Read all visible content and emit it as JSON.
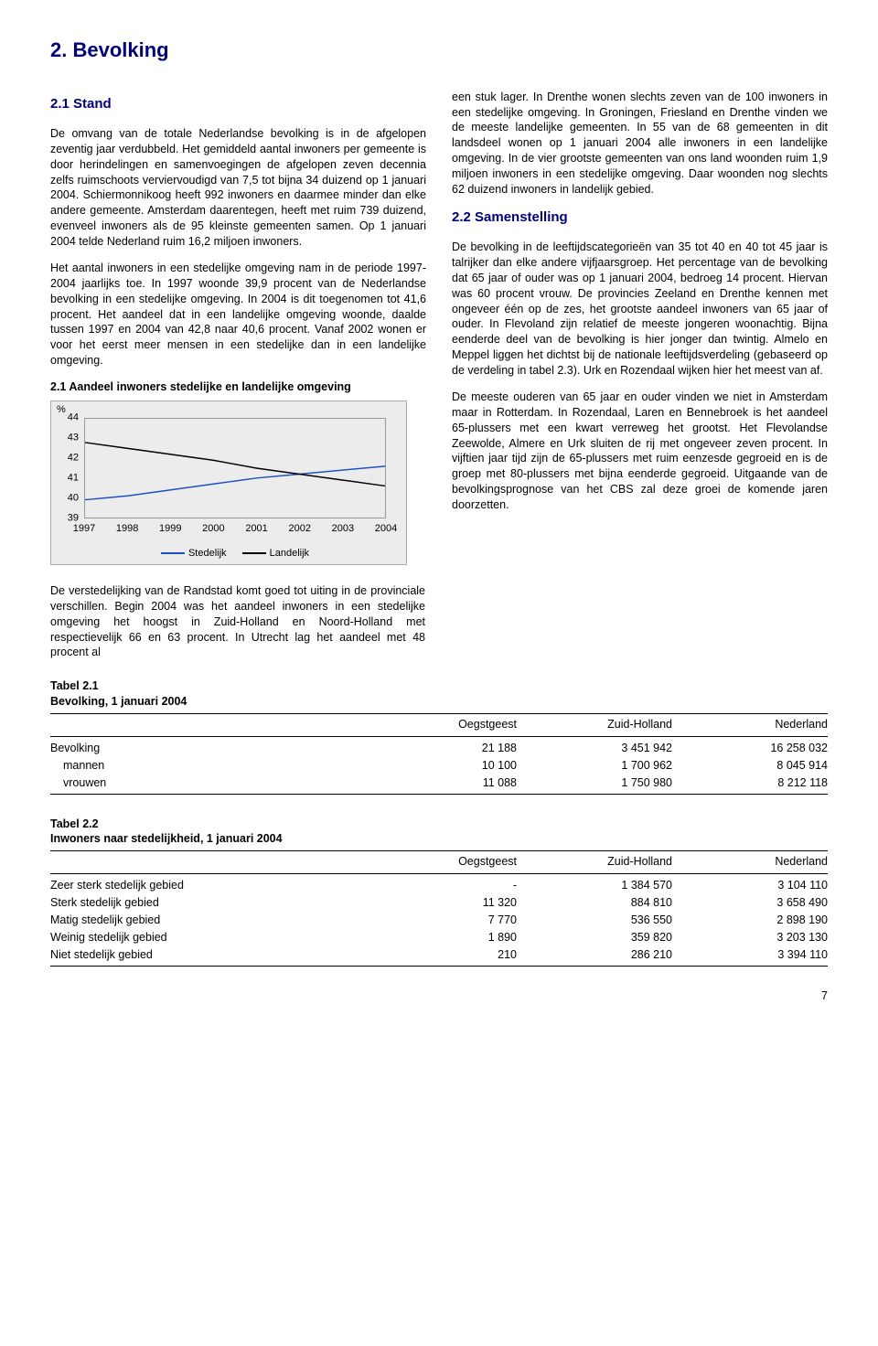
{
  "h1": "2. Bevolking",
  "left": {
    "h2": "2.1 Stand",
    "p1": "De omvang van de totale Nederlandse bevolking is in de afgelopen zeventig jaar verdubbeld. Het gemiddeld aantal inwoners per gemeente is door herindelingen en samenvoegingen de afgelopen zeven decennia zelfs ruimschoots verviervoudigd van 7,5 tot bijna 34 duizend op 1 januari 2004. Schiermonnikoog heeft 992 inwoners en daarmee minder dan elke andere gemeente. Amsterdam daarentegen, heeft met ruim 739 duizend, evenveel inwoners als de 95 kleinste gemeenten samen. Op 1 januari 2004 telde Nederland ruim 16,2 miljoen inwoners.",
    "p2": "Het aantal inwoners in een stedelijke omgeving nam in de periode 1997-2004 jaarlijks toe. In 1997 woonde 39,9 procent van de Nederlandse bevolking in een stedelijke omgeving. In 2004 is dit toegenomen tot 41,6 procent. Het aandeel dat in een landelijke omgeving woonde, daalde tussen 1997 en 2004 van 42,8 naar 40,6 procent. Vanaf 2002 wonen er voor het eerst meer mensen in een stedelijke dan in een landelijke omgeving.",
    "chart_title": "2.1 Aandeel inwoners stedelijke en landelijke omgeving"
  },
  "chart": {
    "type": "line",
    "ylabel": "%",
    "ylim": [
      39,
      44
    ],
    "ytick_step": 1,
    "yticks": [
      "39",
      "40",
      "41",
      "42",
      "43",
      "44"
    ],
    "xticks": [
      "1997",
      "1998",
      "1999",
      "2000",
      "2001",
      "2002",
      "2003",
      "2004"
    ],
    "series": [
      {
        "name": "Stedelijk",
        "color": "#2050c0",
        "values": [
          39.9,
          40.1,
          40.4,
          40.7,
          41.0,
          41.2,
          41.4,
          41.6
        ]
      },
      {
        "name": "Landelijk",
        "color": "#000000",
        "values": [
          42.8,
          42.5,
          42.2,
          41.9,
          41.5,
          41.2,
          40.9,
          40.6
        ]
      }
    ],
    "background": "#ececec",
    "border_color": "#999999",
    "line_width": 1.5,
    "font_size": 11,
    "legend_labels": [
      "Stedelijk",
      "Landelijk"
    ]
  },
  "right": {
    "p1": "een stuk lager. In Drenthe wonen slechts zeven van de 100 inwoners in een stedelijke omgeving. In Groningen, Friesland en Drenthe vinden we de meeste landelijke gemeenten. In 55 van de 68 gemeenten in dit landsdeel wonen op 1 januari 2004 alle inwoners in een landelijke omgeving. In de vier grootste gemeenten van ons land woonden ruim 1,9 miljoen inwoners in een stedelijke omgeving. Daar woonden nog slechts 62 duizend inwoners in landelijk gebied.",
    "h2": "2.2 Samenstelling",
    "p2": "De bevolking in de leeftijdscategorieën van 35 tot 40 en 40 tot 45 jaar is talrijker dan elke andere vijfjaarsgroep. Het percentage van de bevolking dat 65 jaar of ouder was op 1 januari 2004, bedroeg 14 procent. Hiervan was 60 procent vrouw. De provincies Zeeland en Drenthe kennen met ongeveer één op de zes, het grootste aandeel inwoners van 65 jaar of ouder. In Flevoland zijn relatief de meeste jongeren woonachtig. Bijna eenderde deel van de bevolking is hier jonger dan twintig. Almelo en Meppel liggen het dichtst bij de nationale leeftijdsverdeling (gebaseerd op de verdeling in tabel 2.3). Urk en Rozendaal wijken hier het meest van af.",
    "p3": "De meeste ouderen van 65 jaar en ouder vinden we niet in Amsterdam maar in Rotterdam. In Rozendaal, Laren en Bennebroek is het aandeel 65-plussers met een kwart verreweg het grootst. Het Flevolandse Zeewolde, Almere en Urk sluiten de rij met ongeveer zeven procent. In vijftien jaar tijd zijn de 65-plussers met ruim eenzesde gegroeid en is de groep met 80-plussers met bijna eenderde gegroeid. Uitgaande van de bevolkingsprognose van het CBS zal deze groei de komende jaren doorzetten."
  },
  "after": {
    "p": "De verstedelijking van de Randstad komt goed tot uiting in de provinciale verschillen. Begin 2004 was het aandeel inwoners in een stedelijke omgeving het hoogst in Zuid-Holland en Noord-Holland met respectievelijk 66 en 63 procent. In Utrecht lag het aandeel met 48 procent al"
  },
  "table1": {
    "title": "Tabel 2.1",
    "subtitle": "Bevolking, 1 januari 2004",
    "columns": [
      "",
      "Oegstgeest",
      "Zuid-Holland",
      "Nederland"
    ],
    "rows": [
      [
        "Bevolking",
        "21 188",
        "3 451 942",
        "16 258 032"
      ],
      [
        "mannen",
        "10 100",
        "1 700 962",
        "8 045 914"
      ],
      [
        "vrouwen",
        "11 088",
        "1 750 980",
        "8 212 118"
      ]
    ],
    "indent_rows": [
      1,
      2
    ]
  },
  "table2": {
    "title": "Tabel 2.2",
    "subtitle": "Inwoners naar stedelijkheid, 1 januari 2004",
    "columns": [
      "",
      "Oegstgeest",
      "Zuid-Holland",
      "Nederland"
    ],
    "rows": [
      [
        "Zeer sterk stedelijk gebied",
        "-",
        "1 384 570",
        "3 104 110"
      ],
      [
        "Sterk stedelijk gebied",
        "11 320",
        "884 810",
        "3 658 490"
      ],
      [
        "Matig stedelijk gebied",
        "7 770",
        "536 550",
        "2 898 190"
      ],
      [
        "Weinig stedelijk gebied",
        "1 890",
        "359 820",
        "3 203 130"
      ],
      [
        "Niet stedelijk gebied",
        "210",
        "286 210",
        "3 394 110"
      ]
    ],
    "indent_rows": []
  },
  "pagenum": "7",
  "colors": {
    "heading": "#00007a"
  }
}
